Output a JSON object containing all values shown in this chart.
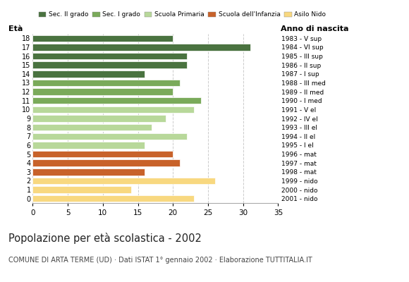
{
  "ages": [
    18,
    17,
    16,
    15,
    14,
    13,
    12,
    11,
    10,
    9,
    8,
    7,
    6,
    5,
    4,
    3,
    2,
    1,
    0
  ],
  "values": [
    20,
    31,
    22,
    22,
    16,
    21,
    20,
    24,
    23,
    19,
    17,
    22,
    16,
    20,
    21,
    16,
    26,
    14,
    23
  ],
  "anno_nascita": [
    "1983 - V sup",
    "1984 - VI sup",
    "1985 - III sup",
    "1986 - II sup",
    "1987 - I sup",
    "1988 - III med",
    "1989 - II med",
    "1990 - I med",
    "1991 - V el",
    "1992 - IV el",
    "1993 - III el",
    "1994 - II el",
    "1995 - I el",
    "1996 - mat",
    "1997 - mat",
    "1998 - mat",
    "1999 - nido",
    "2000 - nido",
    "2001 - nido"
  ],
  "colors": [
    "#4a7340",
    "#4a7340",
    "#4a7340",
    "#4a7340",
    "#4a7340",
    "#7aaa5a",
    "#7aaa5a",
    "#7aaa5a",
    "#b8d89a",
    "#b8d89a",
    "#b8d89a",
    "#b8d89a",
    "#b8d89a",
    "#c8622a",
    "#c8622a",
    "#c8622a",
    "#f8d880",
    "#f8d880",
    "#f8d880"
  ],
  "legend_labels": [
    "Sec. II grado",
    "Sec. I grado",
    "Scuola Primaria",
    "Scuola dell'Infanzia",
    "Asilo Nido"
  ],
  "legend_colors": [
    "#4a7340",
    "#7aaa5a",
    "#b8d89a",
    "#c8622a",
    "#f8d880"
  ],
  "title": "Popolazione per età scolastica - 2002",
  "subtitle": "COMUNE DI ARTA TERME (UD) · Dati ISTAT 1° gennaio 2002 · Elaborazione TUTTITALIA.IT",
  "xlabel_age": "Età",
  "xlabel_year": "Anno di nascita",
  "xlim": [
    0,
    35
  ],
  "xticks": [
    0,
    5,
    10,
    15,
    20,
    25,
    30,
    35
  ],
  "bg_color": "#ffffff",
  "bar_height": 0.75
}
